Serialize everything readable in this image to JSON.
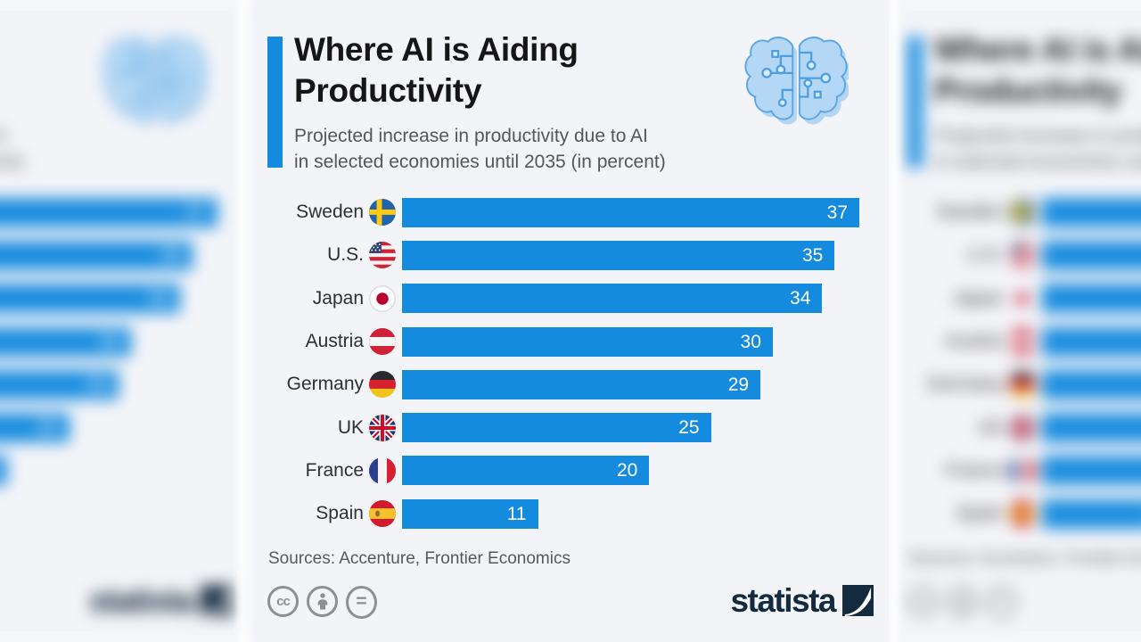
{
  "header": {
    "title_line1": "Where AI is Aiding",
    "title_line2": "Productivity",
    "subtitle_line1": "Projected increase in productivity due to AI",
    "subtitle_line2": "in selected economies until 2035 (in percent)"
  },
  "chart_data": {
    "type": "bar",
    "orientation": "horizontal",
    "title": "Where AI is Aiding Productivity",
    "subtitle": "Projected increase in productivity due to AI in selected economies until 2035 (in percent)",
    "categories": [
      "Sweden",
      "U.S.",
      "Japan",
      "Austria",
      "Germany",
      "UK",
      "France",
      "Spain"
    ],
    "values": [
      37,
      35,
      34,
      30,
      29,
      25,
      20,
      11
    ],
    "flags": [
      "sweden",
      "usa",
      "japan",
      "austria",
      "germany",
      "uk",
      "france",
      "spain"
    ],
    "xlim": [
      0,
      37
    ],
    "unit": "percent",
    "value_label_position": "inside-end",
    "grid": false,
    "legend": false
  },
  "footer": {
    "sources": "Sources: Accenture, Frontier Economics",
    "brand_wordmark": "statista"
  },
  "icons": {
    "header_art": "ai-brain-circuit-icon",
    "brand": "statista-swoosh-icon",
    "license": [
      "cc-icon",
      "attribution-person-icon",
      "equals-icon"
    ]
  },
  "colors": {
    "bar_blue": "#158be0",
    "background": "#f3f4f8",
    "title": "#161616",
    "subtitle": "#54565c",
    "value_label": "#ffffff",
    "brand_navy": "#142a3f",
    "license_gray": "#8f8f8f"
  }
}
